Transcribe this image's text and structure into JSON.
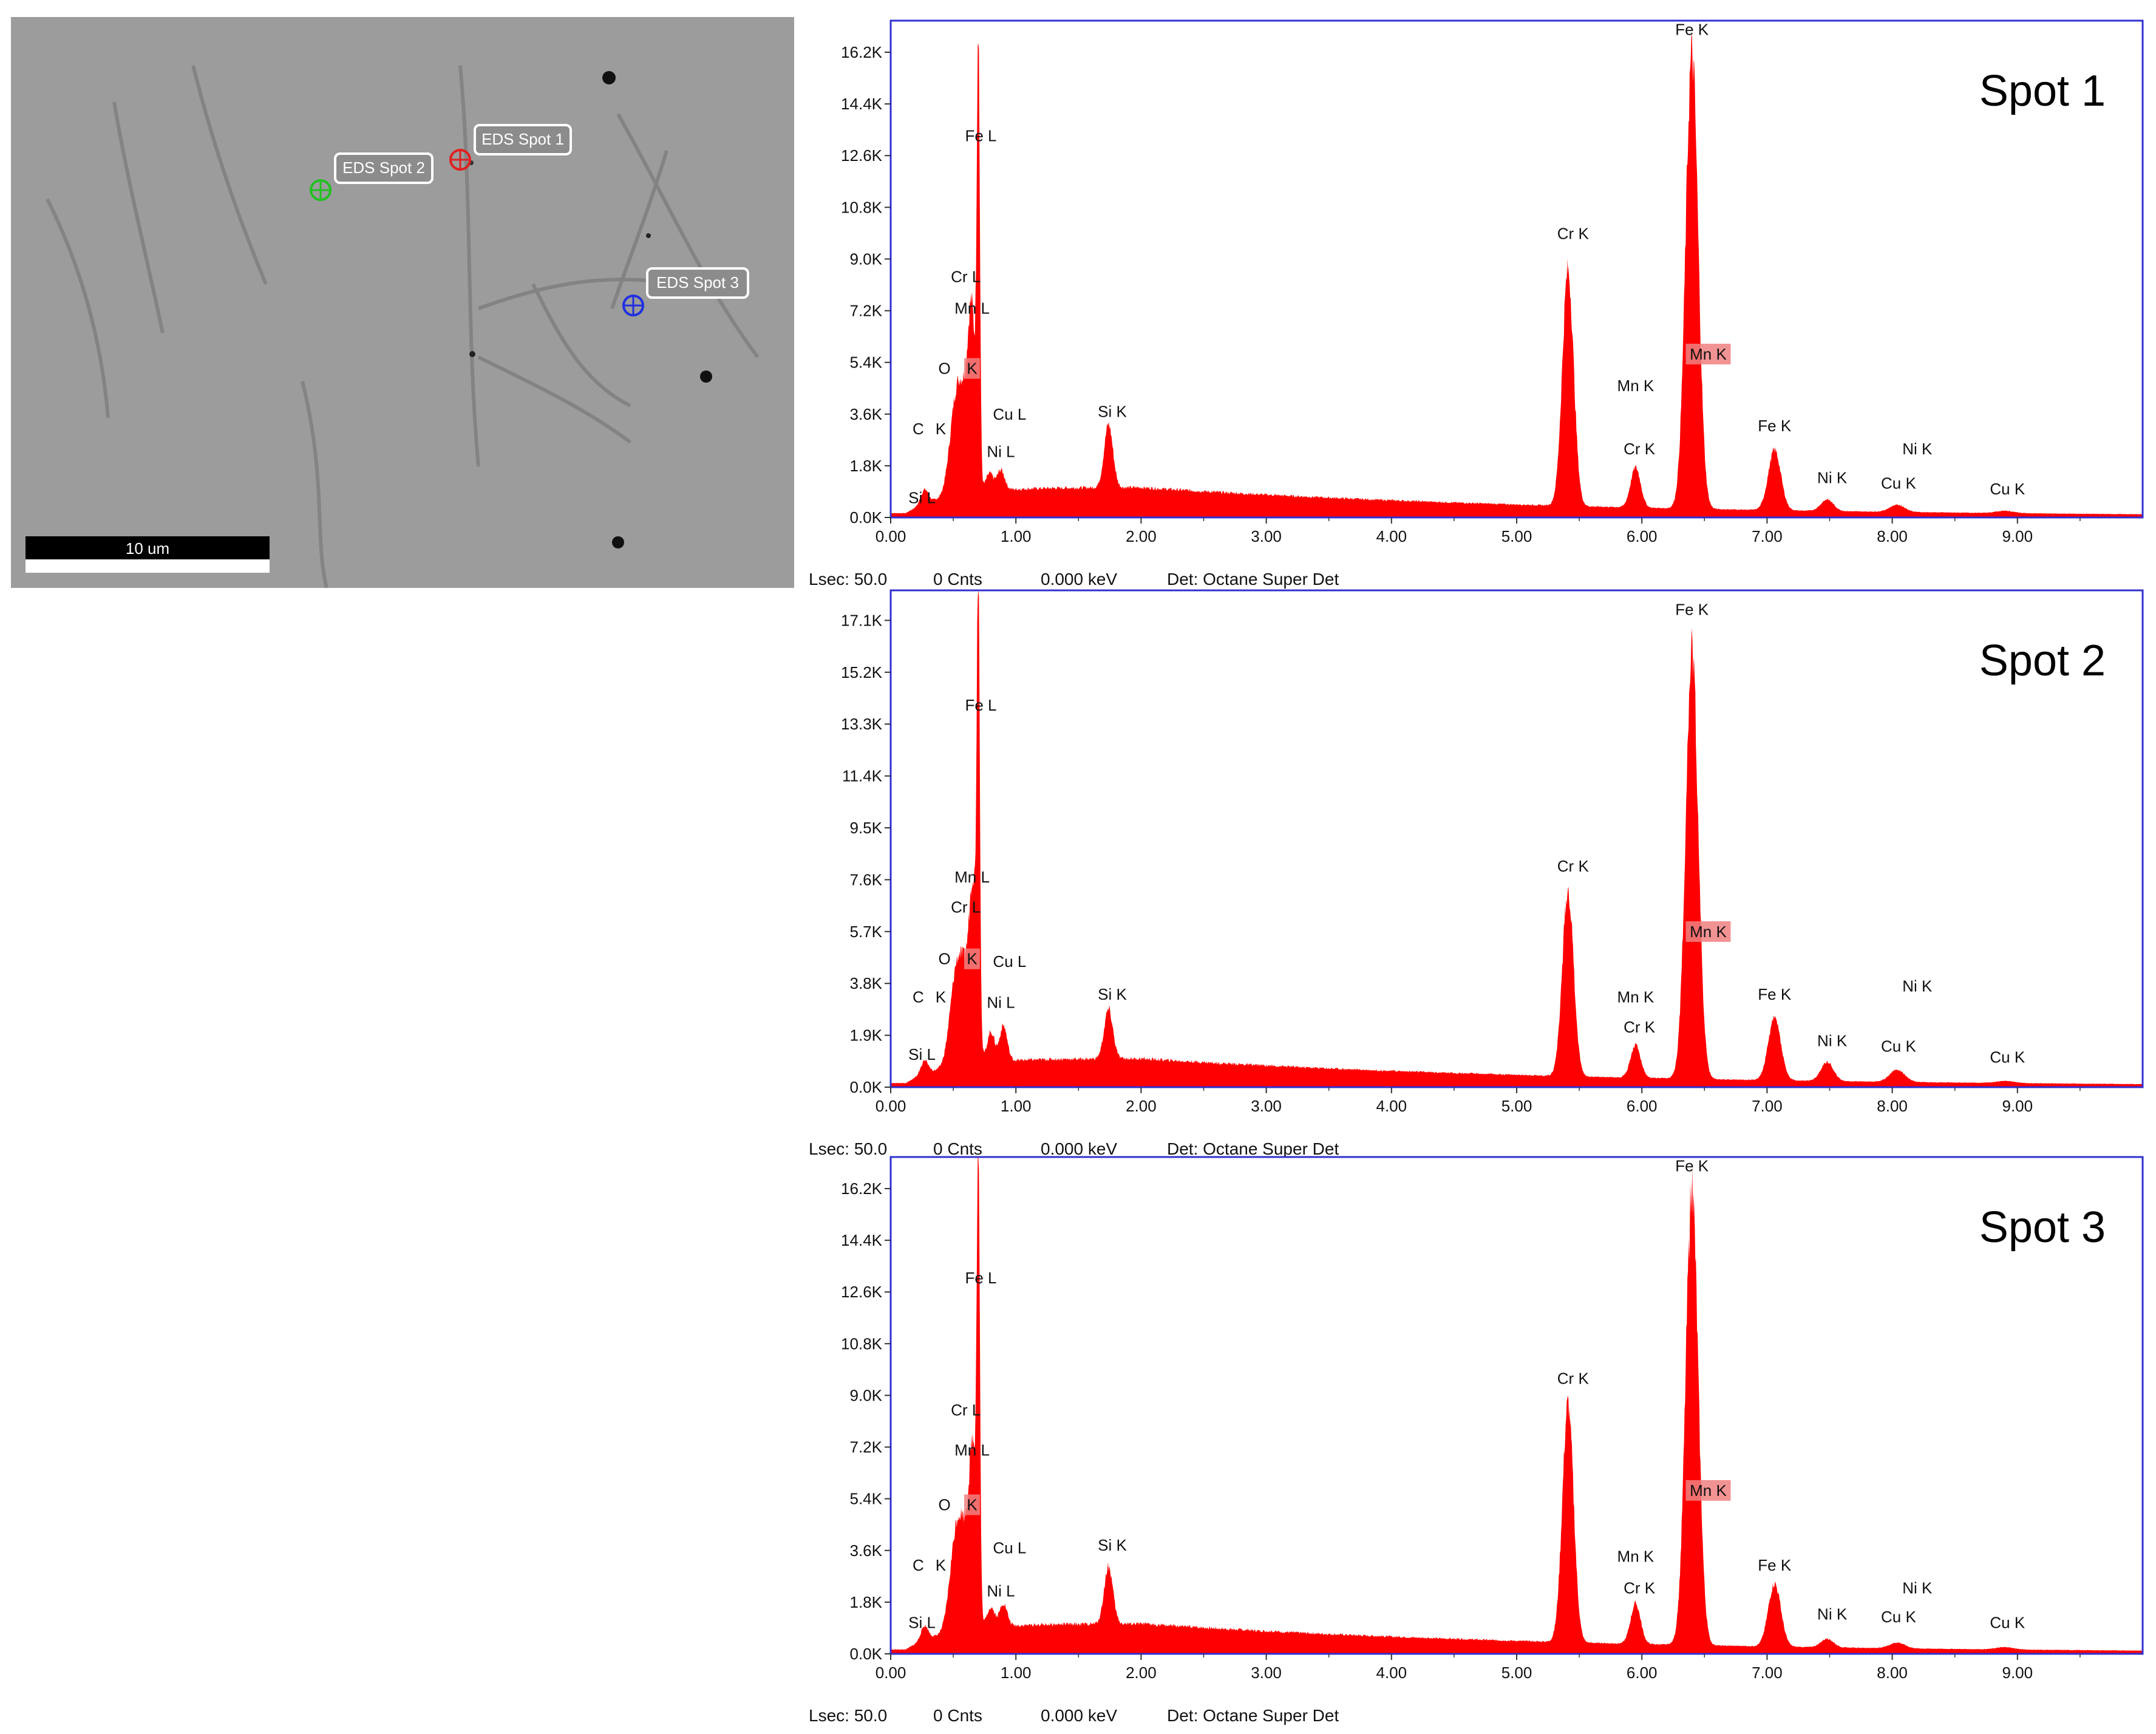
{
  "sem": {
    "scale_label": "10 um",
    "spots": [
      {
        "label": "EDS Spot 1",
        "color": "#e02020"
      },
      {
        "label": "EDS Spot 2",
        "color": "#20c020"
      },
      {
        "label": "EDS Spot 3",
        "color": "#2030e0"
      }
    ]
  },
  "status": {
    "lsec": "Lsec: 50.0",
    "cnts": "0 Cnts",
    "kev": "0.000 keV",
    "det": "Det: Octane Super Det"
  },
  "colors": {
    "spectrum": "#ff0000",
    "frame": "#3030d0",
    "label_box": "#f08080"
  },
  "chart_data": [
    {
      "type": "area",
      "title": "Spot 1",
      "xlim": [
        0,
        10
      ],
      "x_ticks": [
        "0.00",
        "1.00",
        "2.00",
        "3.00",
        "4.00",
        "5.00",
        "6.00",
        "7.00",
        "8.00",
        "9.00"
      ],
      "ylim": [
        0,
        17.3
      ],
      "y_ticks": [
        "0.0K",
        "1.8K",
        "3.6K",
        "5.4K",
        "7.2K",
        "9.0K",
        "10.8K",
        "12.6K",
        "14.4K",
        "16.2K"
      ],
      "y_tick_values": [
        0,
        1.8,
        3.6,
        5.4,
        7.2,
        9.0,
        10.8,
        12.6,
        14.4,
        16.2
      ],
      "peaks": [
        {
          "x": 0.27,
          "h": 0.5,
          "w": 0.03
        },
        {
          "x": 0.52,
          "h": 3.0,
          "w": 0.05
        },
        {
          "x": 0.6,
          "h": 2.5,
          "w": 0.05
        },
        {
          "x": 0.65,
          "h": 5.0,
          "w": 0.03
        },
        {
          "x": 0.7,
          "h": 15.0,
          "w": 0.012
        },
        {
          "x": 0.79,
          "h": 0.6,
          "w": 0.03
        },
        {
          "x": 0.88,
          "h": 0.7,
          "w": 0.03
        },
        {
          "x": 1.74,
          "h": 2.2,
          "w": 0.035
        },
        {
          "x": 5.41,
          "h": 8.2,
          "w": 0.045
        },
        {
          "x": 5.95,
          "h": 1.4,
          "w": 0.04
        },
        {
          "x": 6.4,
          "h": 15.8,
          "w": 0.05
        },
        {
          "x": 7.06,
          "h": 2.1,
          "w": 0.05
        },
        {
          "x": 7.48,
          "h": 0.4,
          "w": 0.05
        },
        {
          "x": 8.04,
          "h": 0.25,
          "w": 0.06
        },
        {
          "x": 8.9,
          "h": 0.08,
          "w": 0.07
        }
      ],
      "labels": [
        {
          "text": "Fe K",
          "x": 6.4,
          "y": 16.8,
          "anchor": "middle"
        },
        {
          "text": "Fe L",
          "x": 0.72,
          "y": 13.1,
          "anchor": "middle"
        },
        {
          "text": "Cr L",
          "x": 0.6,
          "y": 8.2,
          "anchor": "middle"
        },
        {
          "text": "Mn L",
          "x": 0.65,
          "y": 7.1,
          "anchor": "middle"
        },
        {
          "text": "O",
          "x": 0.43,
          "y": 5.0,
          "anchor": "middle"
        },
        {
          "text": "K",
          "x": 0.65,
          "y": 5.0,
          "anchor": "middle",
          "box": true
        },
        {
          "text": "C",
          "x": 0.22,
          "y": 2.9,
          "anchor": "middle"
        },
        {
          "text": "K",
          "x": 0.4,
          "y": 2.9,
          "anchor": "middle"
        },
        {
          "text": "Si L",
          "x": 0.25,
          "y": 0.5,
          "anchor": "middle"
        },
        {
          "text": "Cu L",
          "x": 0.95,
          "y": 3.4,
          "anchor": "middle"
        },
        {
          "text": "Ni L",
          "x": 0.88,
          "y": 2.1,
          "anchor": "middle"
        },
        {
          "text": "Si K",
          "x": 1.77,
          "y": 3.5,
          "anchor": "middle"
        },
        {
          "text": "Cr K",
          "x": 5.45,
          "y": 9.7,
          "anchor": "middle"
        },
        {
          "text": "Mn K",
          "x": 5.95,
          "y": 4.4,
          "anchor": "middle"
        },
        {
          "text": "Cr K",
          "x": 5.98,
          "y": 2.2,
          "anchor": "middle"
        },
        {
          "text": "Mn K",
          "x": 6.53,
          "y": 5.5,
          "anchor": "middle",
          "box": true
        },
        {
          "text": "Fe K",
          "x": 7.06,
          "y": 3.0,
          "anchor": "middle"
        },
        {
          "text": "Ni K",
          "x": 7.52,
          "y": 1.2,
          "anchor": "middle"
        },
        {
          "text": "Ni K",
          "x": 8.2,
          "y": 2.2,
          "anchor": "middle"
        },
        {
          "text": "Cu K",
          "x": 8.05,
          "y": 1.0,
          "anchor": "middle"
        },
        {
          "text": "Cu K",
          "x": 8.92,
          "y": 0.8,
          "anchor": "middle"
        }
      ]
    },
    {
      "type": "area",
      "title": "Spot 2",
      "xlim": [
        0,
        10
      ],
      "x_ticks": [
        "0.00",
        "1.00",
        "2.00",
        "3.00",
        "4.00",
        "5.00",
        "6.00",
        "7.00",
        "8.00",
        "9.00"
      ],
      "ylim": [
        0,
        18.2
      ],
      "y_ticks": [
        "0.0K",
        "1.9K",
        "3.8K",
        "5.7K",
        "7.6K",
        "9.5K",
        "11.4K",
        "13.3K",
        "15.2K",
        "17.1K"
      ],
      "y_tick_values": [
        0,
        1.9,
        3.8,
        5.7,
        7.6,
        9.5,
        11.4,
        13.3,
        15.2,
        17.1
      ],
      "peaks": [
        {
          "x": 0.27,
          "h": 0.5,
          "w": 0.03
        },
        {
          "x": 0.52,
          "h": 3.0,
          "w": 0.05
        },
        {
          "x": 0.6,
          "h": 2.6,
          "w": 0.05
        },
        {
          "x": 0.66,
          "h": 5.5,
          "w": 0.03
        },
        {
          "x": 0.7,
          "h": 16.0,
          "w": 0.012
        },
        {
          "x": 0.8,
          "h": 1.1,
          "w": 0.03
        },
        {
          "x": 0.9,
          "h": 1.3,
          "w": 0.03
        },
        {
          "x": 1.74,
          "h": 1.8,
          "w": 0.035
        },
        {
          "x": 5.41,
          "h": 6.8,
          "w": 0.045
        },
        {
          "x": 5.95,
          "h": 1.2,
          "w": 0.04
        },
        {
          "x": 6.4,
          "h": 15.6,
          "w": 0.05
        },
        {
          "x": 7.06,
          "h": 2.3,
          "w": 0.05
        },
        {
          "x": 7.48,
          "h": 0.7,
          "w": 0.05
        },
        {
          "x": 8.04,
          "h": 0.45,
          "w": 0.06
        },
        {
          "x": 8.9,
          "h": 0.08,
          "w": 0.07
        }
      ],
      "labels": [
        {
          "text": "Fe K",
          "x": 6.4,
          "y": 17.3,
          "anchor": "middle"
        },
        {
          "text": "Fe L",
          "x": 0.72,
          "y": 13.8,
          "anchor": "middle"
        },
        {
          "text": "Mn L",
          "x": 0.65,
          "y": 7.5,
          "anchor": "middle"
        },
        {
          "text": "Cr L",
          "x": 0.6,
          "y": 6.4,
          "anchor": "middle"
        },
        {
          "text": "O",
          "x": 0.43,
          "y": 4.5,
          "anchor": "middle"
        },
        {
          "text": "K",
          "x": 0.65,
          "y": 4.5,
          "anchor": "middle",
          "box": true
        },
        {
          "text": "Cu L",
          "x": 0.95,
          "y": 4.4,
          "anchor": "middle"
        },
        {
          "text": "C",
          "x": 0.22,
          "y": 3.1,
          "anchor": "middle"
        },
        {
          "text": "K",
          "x": 0.4,
          "y": 3.1,
          "anchor": "middle"
        },
        {
          "text": "Ni L",
          "x": 0.88,
          "y": 2.9,
          "anchor": "middle"
        },
        {
          "text": "Si L",
          "x": 0.25,
          "y": 1.0,
          "anchor": "middle"
        },
        {
          "text": "Si K",
          "x": 1.77,
          "y": 3.2,
          "anchor": "middle"
        },
        {
          "text": "Cr K",
          "x": 5.45,
          "y": 7.9,
          "anchor": "middle"
        },
        {
          "text": "Mn K",
          "x": 5.95,
          "y": 3.1,
          "anchor": "middle"
        },
        {
          "text": "Cr K",
          "x": 5.98,
          "y": 2.0,
          "anchor": "middle"
        },
        {
          "text": "Mn K",
          "x": 6.53,
          "y": 5.5,
          "anchor": "middle",
          "box": true
        },
        {
          "text": "Fe K",
          "x": 7.06,
          "y": 3.2,
          "anchor": "middle"
        },
        {
          "text": "Ni K",
          "x": 8.2,
          "y": 3.5,
          "anchor": "middle"
        },
        {
          "text": "Ni K",
          "x": 7.52,
          "y": 1.5,
          "anchor": "middle"
        },
        {
          "text": "Cu K",
          "x": 8.05,
          "y": 1.3,
          "anchor": "middle"
        },
        {
          "text": "Cu K",
          "x": 8.92,
          "y": 0.9,
          "anchor": "middle"
        }
      ]
    },
    {
      "type": "area",
      "title": "Spot 3",
      "xlim": [
        0,
        10
      ],
      "x_ticks": [
        "0.00",
        "1.00",
        "2.00",
        "3.00",
        "4.00",
        "5.00",
        "6.00",
        "7.00",
        "8.00",
        "9.00"
      ],
      "ylim": [
        0,
        17.3
      ],
      "y_ticks": [
        "0.0K",
        "1.8K",
        "3.6K",
        "5.4K",
        "7.2K",
        "9.0K",
        "10.8K",
        "12.6K",
        "14.4K",
        "16.2K"
      ],
      "y_tick_values": [
        0,
        1.8,
        3.6,
        5.4,
        7.2,
        9.0,
        10.8,
        12.6,
        14.4,
        16.2
      ],
      "peaks": [
        {
          "x": 0.27,
          "h": 0.5,
          "w": 0.03
        },
        {
          "x": 0.52,
          "h": 3.0,
          "w": 0.05
        },
        {
          "x": 0.6,
          "h": 2.6,
          "w": 0.05
        },
        {
          "x": 0.66,
          "h": 5.2,
          "w": 0.03
        },
        {
          "x": 0.7,
          "h": 15.0,
          "w": 0.012
        },
        {
          "x": 0.8,
          "h": 0.7,
          "w": 0.03
        },
        {
          "x": 0.9,
          "h": 0.8,
          "w": 0.03
        },
        {
          "x": 1.74,
          "h": 2.0,
          "w": 0.035
        },
        {
          "x": 5.41,
          "h": 8.3,
          "w": 0.045
        },
        {
          "x": 5.95,
          "h": 1.4,
          "w": 0.04
        },
        {
          "x": 6.4,
          "h": 15.8,
          "w": 0.05
        },
        {
          "x": 7.06,
          "h": 2.2,
          "w": 0.05
        },
        {
          "x": 7.48,
          "h": 0.3,
          "w": 0.05
        },
        {
          "x": 8.04,
          "h": 0.2,
          "w": 0.06
        },
        {
          "x": 8.9,
          "h": 0.08,
          "w": 0.07
        }
      ],
      "labels": [
        {
          "text": "Fe K",
          "x": 6.4,
          "y": 16.8,
          "anchor": "middle"
        },
        {
          "text": "Fe L",
          "x": 0.72,
          "y": 12.9,
          "anchor": "middle"
        },
        {
          "text": "Cr L",
          "x": 0.6,
          "y": 8.3,
          "anchor": "middle"
        },
        {
          "text": "Mn L",
          "x": 0.65,
          "y": 6.9,
          "anchor": "middle"
        },
        {
          "text": "O",
          "x": 0.43,
          "y": 5.0,
          "anchor": "middle"
        },
        {
          "text": "K",
          "x": 0.65,
          "y": 5.0,
          "anchor": "middle",
          "box": true
        },
        {
          "text": "C",
          "x": 0.22,
          "y": 2.9,
          "anchor": "middle"
        },
        {
          "text": "K",
          "x": 0.4,
          "y": 2.9,
          "anchor": "middle"
        },
        {
          "text": "Cu L",
          "x": 0.95,
          "y": 3.5,
          "anchor": "middle"
        },
        {
          "text": "Ni L",
          "x": 0.88,
          "y": 2.0,
          "anchor": "middle"
        },
        {
          "text": "Si L",
          "x": 0.25,
          "y": 0.9,
          "anchor": "middle"
        },
        {
          "text": "Si K",
          "x": 1.77,
          "y": 3.6,
          "anchor": "middle"
        },
        {
          "text": "Cr K",
          "x": 5.45,
          "y": 9.4,
          "anchor": "middle"
        },
        {
          "text": "Mn K",
          "x": 5.95,
          "y": 3.2,
          "anchor": "middle"
        },
        {
          "text": "Cr K",
          "x": 5.98,
          "y": 2.1,
          "anchor": "middle"
        },
        {
          "text": "Mn K",
          "x": 6.53,
          "y": 5.5,
          "anchor": "middle",
          "box": true
        },
        {
          "text": "Fe K",
          "x": 7.06,
          "y": 2.9,
          "anchor": "middle"
        },
        {
          "text": "Ni K",
          "x": 8.2,
          "y": 2.1,
          "anchor": "middle"
        },
        {
          "text": "Ni K",
          "x": 7.52,
          "y": 1.2,
          "anchor": "middle"
        },
        {
          "text": "Cu K",
          "x": 8.05,
          "y": 1.1,
          "anchor": "middle"
        },
        {
          "text": "Cu K",
          "x": 8.92,
          "y": 0.9,
          "anchor": "middle"
        }
      ]
    }
  ]
}
